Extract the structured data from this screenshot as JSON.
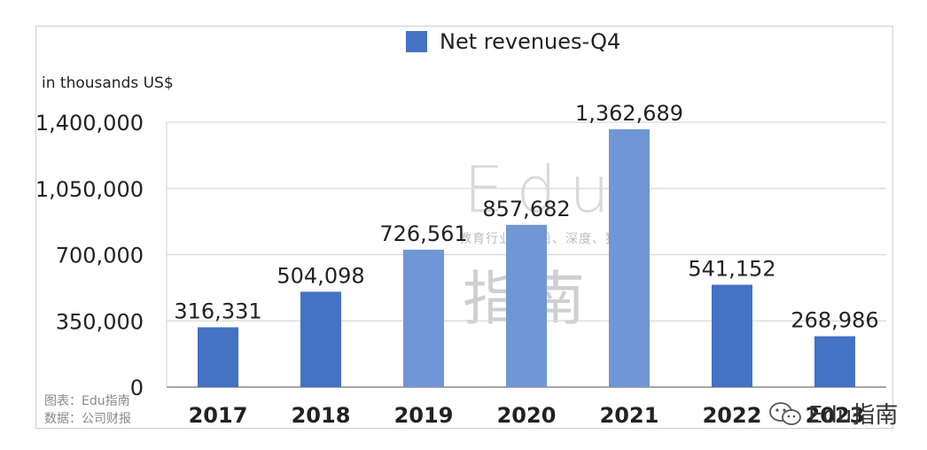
{
  "chart_data": {
    "type": "bar",
    "legend": "Net revenues-Q4",
    "ylabel": "in thousands US$",
    "categories": [
      "2017",
      "2018",
      "2019",
      "2020",
      "2021",
      "2022",
      "2023"
    ],
    "values": [
      316331,
      504098,
      726561,
      857682,
      1362689,
      541152,
      268986
    ],
    "data_labels": [
      "316,331",
      "504,098",
      "726,561",
      "857,682",
      "1,362,689",
      "541,152",
      "268,986"
    ],
    "yticks": [
      0,
      350000,
      700000,
      1050000,
      1400000
    ],
    "ytick_labels": [
      "0",
      "350,000",
      "700,000",
      "1,050,000",
      "1,400,000"
    ],
    "ylim": [
      0,
      1400000
    ],
    "grid": true,
    "legend_position": "top-center",
    "colors": {
      "bar_dark": "#4472C4",
      "bar_light": "#7096D5",
      "grid": "#d9d9d9",
      "axis": "#888888",
      "text": "#222222"
    },
    "bar_shades": [
      "dark",
      "dark",
      "light",
      "light",
      "light",
      "dark",
      "dark"
    ]
  },
  "source": {
    "line1": "图表：Edu指南",
    "line2": "数据：公司财报"
  },
  "watermark": {
    "edu": "Edu",
    "guide": "指南",
    "tagline": "教育行业，前沿、深度、独家"
  },
  "badge": {
    "text": "Edu指南",
    "icon": "wechat-icon"
  }
}
